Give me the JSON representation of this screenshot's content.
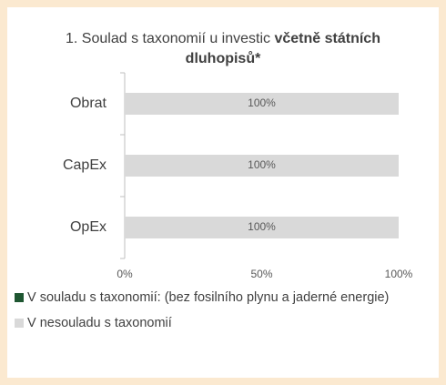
{
  "chart_data": {
    "type": "stacked_barh",
    "title": [
      "1. Soulad s taxonomií u investic",
      "včetně státních dluhopisů*"
    ],
    "categories": [
      "Obrat",
      "CapEx",
      "OpEx"
    ],
    "series": [
      {
        "name": "V souladu s taxonomií: (bez fosilního plynu a jaderné energie)",
        "color": "#1e5631",
        "values": [
          0,
          0,
          0
        ]
      },
      {
        "name": "V nesouladu s taxonomií",
        "color": "#d9d9d9",
        "values": [
          100,
          100,
          100
        ],
        "value_labels": [
          "100%",
          "100%",
          "100%"
        ]
      }
    ],
    "xlim": [
      0,
      100
    ],
    "xticks": [
      {
        "value": 0,
        "label": "0%"
      },
      {
        "value": 50,
        "label": "50%"
      },
      {
        "value": 100,
        "label": "100%"
      }
    ],
    "legend": "bottom"
  }
}
